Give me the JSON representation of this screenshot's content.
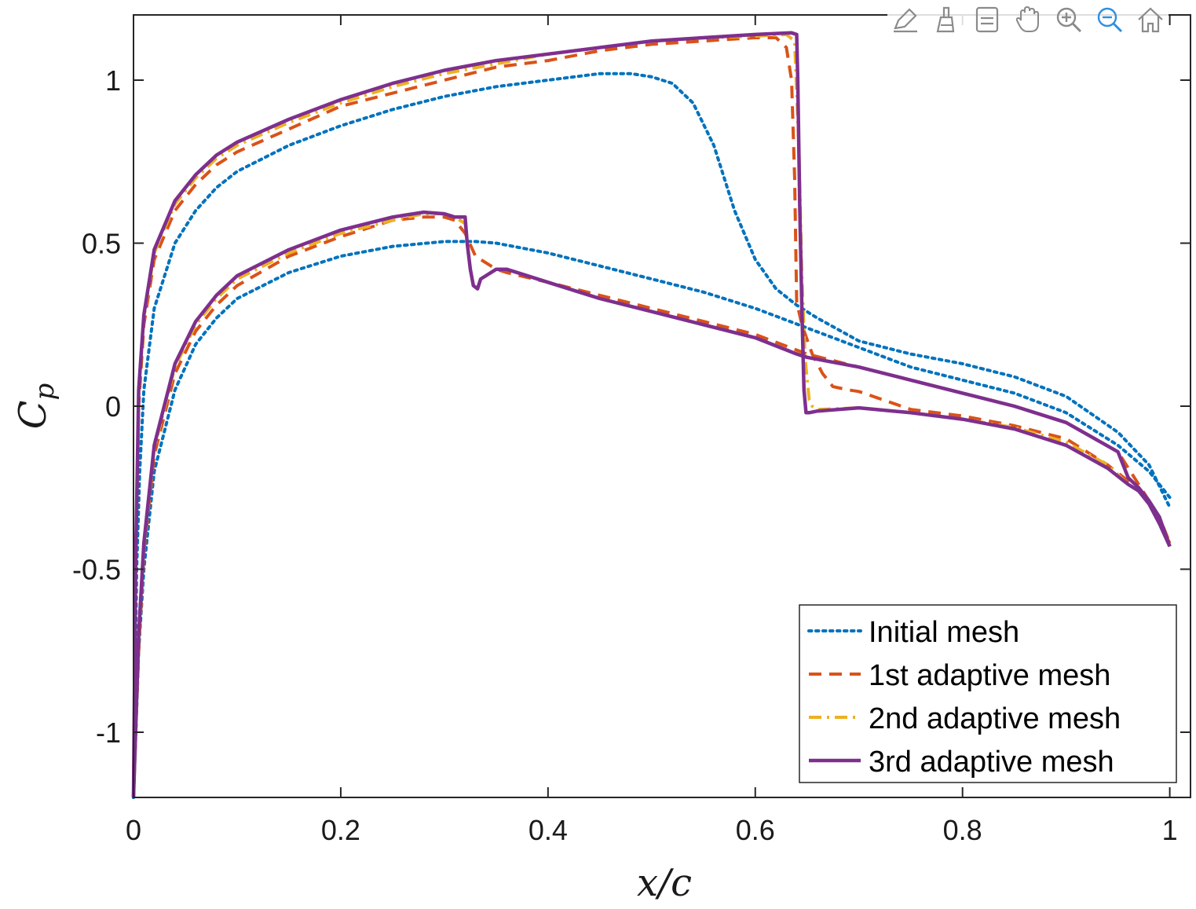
{
  "toolbar": {
    "buttons": [
      {
        "name": "edit-plot-icon",
        "label": "Edit"
      },
      {
        "name": "brush-icon",
        "label": "Brush"
      },
      {
        "name": "data-tips-icon",
        "label": "Data Tips"
      },
      {
        "name": "pan-icon",
        "label": "Pan"
      },
      {
        "name": "zoom-in-icon",
        "label": "Zoom In"
      },
      {
        "name": "zoom-out-icon",
        "label": "Zoom Out"
      },
      {
        "name": "home-icon",
        "label": "Restore View"
      }
    ],
    "active_color": "#2f8fe0",
    "icon_color": "#8a8a8a"
  },
  "chart_data": {
    "type": "line",
    "title": "",
    "xlabel": "x/c",
    "ylabel": "C_p",
    "xlabel_display": "x/c",
    "ylabel_display": "Cp",
    "ylabel_main": "C",
    "ylabel_sub": "p",
    "xlim": [
      0,
      1.02
    ],
    "ylim": [
      -1.2,
      1.2
    ],
    "xticks": [
      0,
      0.2,
      0.4,
      0.6,
      0.8,
      1
    ],
    "xtick_labels": [
      "0",
      "0.2",
      "0.4",
      "0.6",
      "0.8",
      "1"
    ],
    "yticks": [
      -1,
      -0.5,
      0,
      0.5,
      1
    ],
    "ytick_labels": [
      "-1",
      "-0.5",
      "0",
      "0.5",
      "1"
    ],
    "grid": false,
    "legend_position": "bottom-right",
    "series": [
      {
        "name": "Initial mesh",
        "style": "dotted",
        "color": "#0072BD",
        "upper": [
          [
            0,
            -1.2
          ],
          [
            0.003,
            -0.5
          ],
          [
            0.006,
            -0.2
          ],
          [
            0.01,
            0.05
          ],
          [
            0.02,
            0.3
          ],
          [
            0.04,
            0.5
          ],
          [
            0.06,
            0.6
          ],
          [
            0.08,
            0.67
          ],
          [
            0.1,
            0.72
          ],
          [
            0.15,
            0.8
          ],
          [
            0.2,
            0.86
          ],
          [
            0.25,
            0.91
          ],
          [
            0.3,
            0.95
          ],
          [
            0.35,
            0.98
          ],
          [
            0.4,
            1.0
          ],
          [
            0.45,
            1.02
          ],
          [
            0.48,
            1.02
          ],
          [
            0.5,
            1.01
          ],
          [
            0.52,
            0.99
          ],
          [
            0.54,
            0.93
          ],
          [
            0.56,
            0.8
          ],
          [
            0.58,
            0.6
          ],
          [
            0.6,
            0.45
          ],
          [
            0.62,
            0.36
          ],
          [
            0.64,
            0.31
          ],
          [
            0.66,
            0.27
          ],
          [
            0.7,
            0.2
          ],
          [
            0.75,
            0.16
          ],
          [
            0.8,
            0.13
          ],
          [
            0.85,
            0.09
          ],
          [
            0.9,
            0.03
          ],
          [
            0.95,
            -0.08
          ],
          [
            0.98,
            -0.18
          ],
          [
            1.0,
            -0.31
          ]
        ],
        "lower": [
          [
            0,
            -1.2
          ],
          [
            0.005,
            -0.75
          ],
          [
            0.01,
            -0.5
          ],
          [
            0.02,
            -0.2
          ],
          [
            0.04,
            0.05
          ],
          [
            0.06,
            0.19
          ],
          [
            0.08,
            0.27
          ],
          [
            0.1,
            0.33
          ],
          [
            0.15,
            0.41
          ],
          [
            0.2,
            0.46
          ],
          [
            0.25,
            0.49
          ],
          [
            0.3,
            0.505
          ],
          [
            0.33,
            0.505
          ],
          [
            0.35,
            0.5
          ],
          [
            0.4,
            0.47
          ],
          [
            0.45,
            0.43
          ],
          [
            0.5,
            0.39
          ],
          [
            0.55,
            0.35
          ],
          [
            0.6,
            0.3
          ],
          [
            0.65,
            0.24
          ],
          [
            0.7,
            0.18
          ],
          [
            0.75,
            0.12
          ],
          [
            0.8,
            0.08
          ],
          [
            0.85,
            0.04
          ],
          [
            0.9,
            -0.02
          ],
          [
            0.95,
            -0.12
          ],
          [
            0.98,
            -0.2
          ],
          [
            1.0,
            -0.28
          ]
        ]
      },
      {
        "name": "1st adaptive mesh",
        "style": "dashed",
        "color": "#D95319",
        "upper": [
          [
            0,
            -1.2
          ],
          [
            0.002,
            -0.5
          ],
          [
            0.005,
            0.0
          ],
          [
            0.01,
            0.25
          ],
          [
            0.02,
            0.45
          ],
          [
            0.04,
            0.6
          ],
          [
            0.06,
            0.68
          ],
          [
            0.08,
            0.74
          ],
          [
            0.1,
            0.78
          ],
          [
            0.15,
            0.85
          ],
          [
            0.2,
            0.92
          ],
          [
            0.25,
            0.96
          ],
          [
            0.3,
            1.0
          ],
          [
            0.35,
            1.04
          ],
          [
            0.4,
            1.06
          ],
          [
            0.45,
            1.09
          ],
          [
            0.5,
            1.11
          ],
          [
            0.55,
            1.12
          ],
          [
            0.6,
            1.13
          ],
          [
            0.62,
            1.13
          ],
          [
            0.63,
            1.1
          ],
          [
            0.635,
            1.0
          ],
          [
            0.638,
            0.7
          ],
          [
            0.64,
            0.32
          ],
          [
            0.645,
            0.25
          ],
          [
            0.655,
            0.16
          ],
          [
            0.665,
            0.1
          ],
          [
            0.675,
            0.06
          ],
          [
            0.69,
            0.05
          ],
          [
            0.7,
            0.045
          ],
          [
            0.75,
            -0.01
          ],
          [
            0.8,
            -0.03
          ],
          [
            0.85,
            -0.06
          ],
          [
            0.9,
            -0.1
          ],
          [
            0.94,
            -0.18
          ],
          [
            0.96,
            -0.23
          ],
          [
            0.97,
            -0.25
          ],
          [
            0.98,
            -0.3
          ],
          [
            0.99,
            -0.36
          ],
          [
            1.0,
            -0.42
          ]
        ],
        "lower": [
          [
            0,
            -1.2
          ],
          [
            0.005,
            -0.75
          ],
          [
            0.01,
            -0.45
          ],
          [
            0.02,
            -0.15
          ],
          [
            0.04,
            0.1
          ],
          [
            0.06,
            0.23
          ],
          [
            0.08,
            0.31
          ],
          [
            0.1,
            0.37
          ],
          [
            0.15,
            0.46
          ],
          [
            0.2,
            0.52
          ],
          [
            0.25,
            0.57
          ],
          [
            0.28,
            0.58
          ],
          [
            0.3,
            0.58
          ],
          [
            0.31,
            0.57
          ],
          [
            0.32,
            0.53
          ],
          [
            0.33,
            0.46
          ],
          [
            0.34,
            0.44
          ],
          [
            0.35,
            0.42
          ],
          [
            0.36,
            0.41
          ],
          [
            0.4,
            0.38
          ],
          [
            0.45,
            0.34
          ],
          [
            0.5,
            0.3
          ],
          [
            0.55,
            0.26
          ],
          [
            0.6,
            0.22
          ],
          [
            0.65,
            0.16
          ],
          [
            0.7,
            0.12
          ],
          [
            0.75,
            0.08
          ],
          [
            0.8,
            0.04
          ],
          [
            0.85,
            0.0
          ],
          [
            0.9,
            -0.05
          ],
          [
            0.95,
            -0.14
          ],
          [
            0.97,
            -0.24
          ],
          [
            0.98,
            -0.29
          ],
          [
            0.99,
            -0.34
          ],
          [
            1.0,
            -0.42
          ]
        ]
      },
      {
        "name": "2nd adaptive mesh",
        "style": "dashdot",
        "color": "#EDB120",
        "upper": [
          [
            0,
            -1.2
          ],
          [
            0.002,
            -0.5
          ],
          [
            0.005,
            0.05
          ],
          [
            0.01,
            0.27
          ],
          [
            0.02,
            0.47
          ],
          [
            0.04,
            0.62
          ],
          [
            0.06,
            0.7
          ],
          [
            0.08,
            0.76
          ],
          [
            0.1,
            0.8
          ],
          [
            0.15,
            0.87
          ],
          [
            0.2,
            0.93
          ],
          [
            0.25,
            0.98
          ],
          [
            0.3,
            1.02
          ],
          [
            0.35,
            1.05
          ],
          [
            0.4,
            1.08
          ],
          [
            0.45,
            1.1
          ],
          [
            0.5,
            1.12
          ],
          [
            0.55,
            1.13
          ],
          [
            0.6,
            1.135
          ],
          [
            0.63,
            1.14
          ],
          [
            0.638,
            1.12
          ],
          [
            0.642,
            0.8
          ],
          [
            0.645,
            0.4
          ],
          [
            0.648,
            0.15
          ],
          [
            0.652,
            0.02
          ],
          [
            0.655,
            0.0
          ],
          [
            0.66,
            -0.01
          ],
          [
            0.7,
            -0.005
          ],
          [
            0.75,
            -0.02
          ],
          [
            0.8,
            -0.04
          ],
          [
            0.85,
            -0.065
          ],
          [
            0.9,
            -0.11
          ],
          [
            0.94,
            -0.18
          ],
          [
            0.96,
            -0.24
          ],
          [
            0.97,
            -0.26
          ],
          [
            0.98,
            -0.3
          ],
          [
            0.99,
            -0.36
          ],
          [
            1.0,
            -0.43
          ]
        ],
        "lower": [
          [
            0,
            -1.2
          ],
          [
            0.005,
            -0.72
          ],
          [
            0.01,
            -0.43
          ],
          [
            0.02,
            -0.13
          ],
          [
            0.04,
            0.12
          ],
          [
            0.06,
            0.25
          ],
          [
            0.08,
            0.33
          ],
          [
            0.1,
            0.39
          ],
          [
            0.15,
            0.47
          ],
          [
            0.2,
            0.53
          ],
          [
            0.25,
            0.57
          ],
          [
            0.28,
            0.59
          ],
          [
            0.3,
            0.59
          ],
          [
            0.31,
            0.58
          ],
          [
            0.32,
            0.56
          ],
          [
            0.322,
            0.5
          ],
          [
            0.325,
            0.42
          ],
          [
            0.328,
            0.37
          ],
          [
            0.332,
            0.36
          ],
          [
            0.335,
            0.39
          ],
          [
            0.34,
            0.4
          ],
          [
            0.35,
            0.42
          ],
          [
            0.36,
            0.42
          ],
          [
            0.4,
            0.38
          ],
          [
            0.45,
            0.33
          ],
          [
            0.5,
            0.29
          ],
          [
            0.55,
            0.25
          ],
          [
            0.6,
            0.21
          ],
          [
            0.65,
            0.15
          ],
          [
            0.7,
            0.12
          ],
          [
            0.75,
            0.08
          ],
          [
            0.8,
            0.04
          ],
          [
            0.85,
            0.0
          ],
          [
            0.9,
            -0.05
          ],
          [
            0.95,
            -0.14
          ],
          [
            0.96,
            -0.22
          ],
          [
            0.97,
            -0.25
          ],
          [
            0.98,
            -0.29
          ],
          [
            0.99,
            -0.34
          ],
          [
            1.0,
            -0.43
          ]
        ]
      },
      {
        "name": "3rd adaptive mesh",
        "style": "solid",
        "color": "#7E2F8E",
        "upper": [
          [
            0,
            -1.2
          ],
          [
            0.002,
            -0.5
          ],
          [
            0.005,
            0.05
          ],
          [
            0.01,
            0.28
          ],
          [
            0.02,
            0.48
          ],
          [
            0.04,
            0.63
          ],
          [
            0.06,
            0.71
          ],
          [
            0.08,
            0.77
          ],
          [
            0.1,
            0.81
          ],
          [
            0.15,
            0.88
          ],
          [
            0.2,
            0.94
          ],
          [
            0.25,
            0.99
          ],
          [
            0.3,
            1.03
          ],
          [
            0.35,
            1.06
          ],
          [
            0.4,
            1.08
          ],
          [
            0.45,
            1.1
          ],
          [
            0.5,
            1.12
          ],
          [
            0.55,
            1.13
          ],
          [
            0.6,
            1.14
          ],
          [
            0.635,
            1.145
          ],
          [
            0.64,
            1.14
          ],
          [
            0.641,
            1.0
          ],
          [
            0.643,
            0.6
          ],
          [
            0.645,
            0.3
          ],
          [
            0.647,
            0.05
          ],
          [
            0.649,
            -0.02
          ],
          [
            0.652,
            -0.02
          ],
          [
            0.66,
            -0.015
          ],
          [
            0.7,
            -0.005
          ],
          [
            0.75,
            -0.02
          ],
          [
            0.8,
            -0.04
          ],
          [
            0.85,
            -0.07
          ],
          [
            0.9,
            -0.12
          ],
          [
            0.94,
            -0.19
          ],
          [
            0.96,
            -0.24
          ],
          [
            0.97,
            -0.26
          ],
          [
            0.98,
            -0.3
          ],
          [
            0.99,
            -0.36
          ],
          [
            1.0,
            -0.43
          ]
        ],
        "lower": [
          [
            0,
            -1.2
          ],
          [
            0.005,
            -0.7
          ],
          [
            0.01,
            -0.42
          ],
          [
            0.02,
            -0.12
          ],
          [
            0.04,
            0.13
          ],
          [
            0.06,
            0.26
          ],
          [
            0.08,
            0.34
          ],
          [
            0.1,
            0.4
          ],
          [
            0.15,
            0.48
          ],
          [
            0.2,
            0.54
          ],
          [
            0.25,
            0.58
          ],
          [
            0.28,
            0.595
          ],
          [
            0.3,
            0.59
          ],
          [
            0.31,
            0.58
          ],
          [
            0.32,
            0.58
          ],
          [
            0.322,
            0.5
          ],
          [
            0.325,
            0.42
          ],
          [
            0.328,
            0.37
          ],
          [
            0.332,
            0.36
          ],
          [
            0.335,
            0.39
          ],
          [
            0.34,
            0.4
          ],
          [
            0.35,
            0.42
          ],
          [
            0.36,
            0.42
          ],
          [
            0.4,
            0.38
          ],
          [
            0.45,
            0.33
          ],
          [
            0.5,
            0.29
          ],
          [
            0.55,
            0.25
          ],
          [
            0.6,
            0.21
          ],
          [
            0.64,
            0.16
          ],
          [
            0.65,
            0.15
          ],
          [
            0.7,
            0.12
          ],
          [
            0.75,
            0.08
          ],
          [
            0.8,
            0.04
          ],
          [
            0.85,
            0.0
          ],
          [
            0.9,
            -0.05
          ],
          [
            0.95,
            -0.14
          ],
          [
            0.96,
            -0.22
          ],
          [
            0.97,
            -0.25
          ],
          [
            0.98,
            -0.29
          ],
          [
            0.99,
            -0.34
          ],
          [
            1.0,
            -0.43
          ]
        ]
      }
    ]
  }
}
